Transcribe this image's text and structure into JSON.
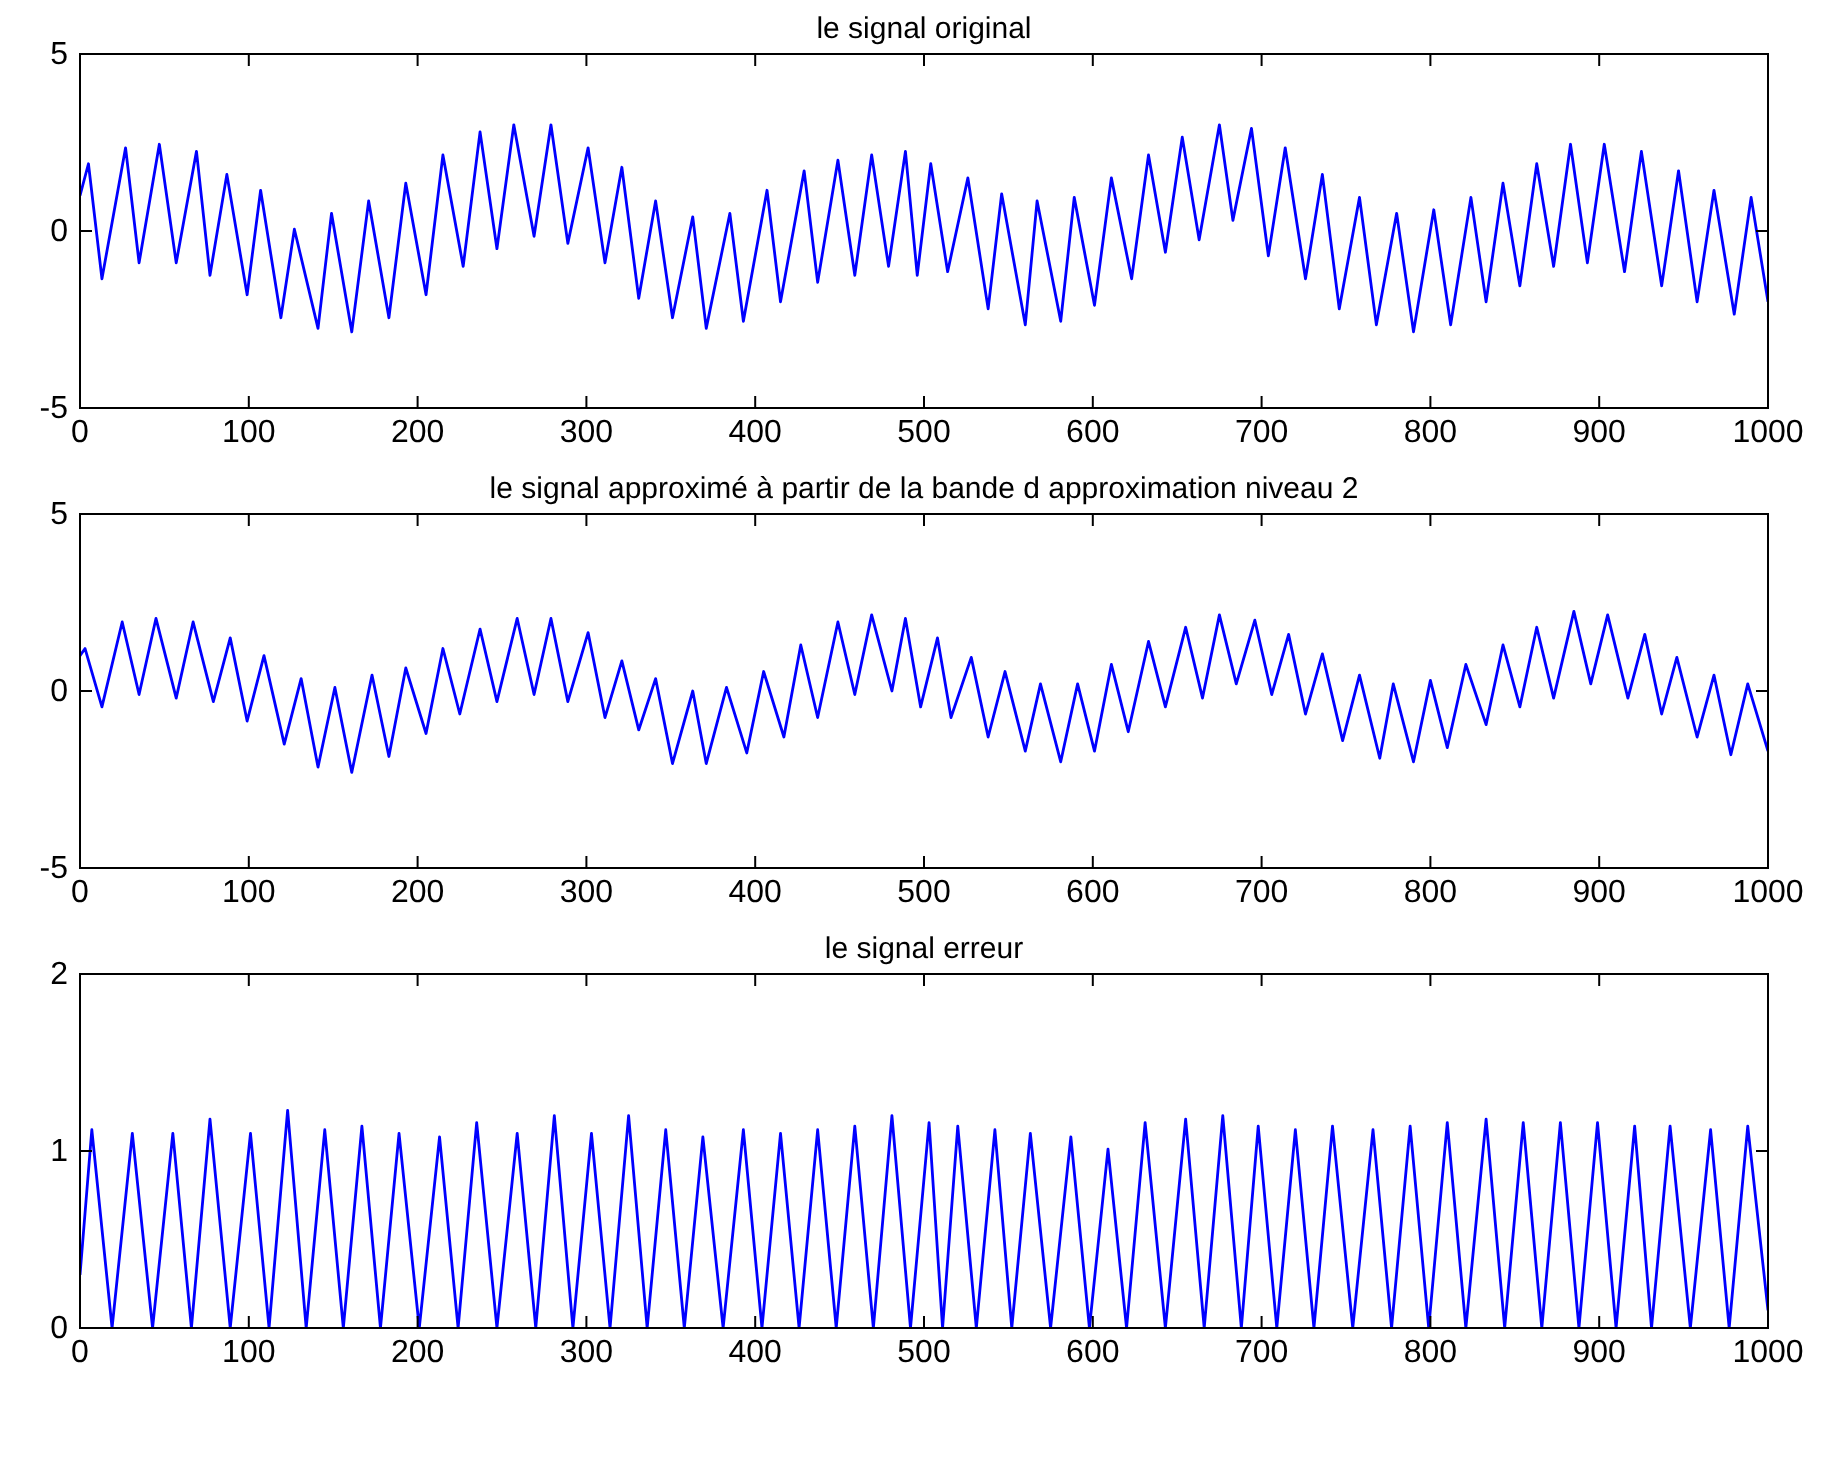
{
  "chart_data": [
    {
      "type": "line",
      "title": "le signal original",
      "color": "#0000ff",
      "xlim": [
        0,
        1000
      ],
      "ylim": [
        -5,
        5
      ],
      "xticks": [
        0,
        100,
        200,
        300,
        400,
        500,
        600,
        700,
        800,
        900,
        1000
      ],
      "yticks": [
        -5,
        0,
        5
      ],
      "x": [
        0,
        5,
        13,
        27,
        35,
        47,
        57,
        69,
        77,
        87,
        99,
        107,
        119,
        127,
        141,
        149,
        161,
        171,
        183,
        193,
        205,
        215,
        227,
        237,
        247,
        257,
        269,
        279,
        289,
        301,
        311,
        321,
        331,
        341,
        351,
        363,
        371,
        385,
        393,
        407,
        415,
        429,
        437,
        449,
        459,
        469,
        479,
        489,
        496,
        504,
        514,
        526,
        538,
        546,
        560,
        567,
        581,
        589,
        601,
        611,
        623,
        633,
        643,
        653,
        663,
        675,
        683,
        694,
        704,
        714,
        726,
        736,
        746,
        758,
        768,
        780,
        790,
        802,
        812,
        824,
        833,
        843,
        853,
        863,
        873,
        883,
        893,
        903,
        915,
        925,
        937,
        947,
        958,
        968,
        980,
        990,
        1000
      ],
      "values": [
        1.0,
        1.9,
        -1.35,
        2.35,
        -0.9,
        2.45,
        -0.9,
        2.25,
        -1.25,
        1.6,
        -1.8,
        1.15,
        -2.45,
        0.05,
        -2.75,
        0.5,
        -2.85,
        0.85,
        -2.45,
        1.35,
        -1.8,
        2.15,
        -1.0,
        2.8,
        -0.5,
        3.0,
        -0.15,
        3.0,
        -0.35,
        2.35,
        -0.9,
        1.8,
        -1.9,
        0.85,
        -2.45,
        0.4,
        -2.75,
        0.5,
        -2.55,
        1.15,
        -2.0,
        1.7,
        -1.45,
        2.0,
        -1.25,
        2.15,
        -1.0,
        2.25,
        -1.25,
        1.9,
        -1.15,
        1.5,
        -2.2,
        1.05,
        -2.65,
        0.85,
        -2.55,
        0.95,
        -2.1,
        1.5,
        -1.35,
        2.15,
        -0.6,
        2.65,
        -0.25,
        3.0,
        0.3,
        2.9,
        -0.7,
        2.35,
        -1.35,
        1.6,
        -2.2,
        0.95,
        -2.65,
        0.5,
        -2.85,
        0.6,
        -2.65,
        0.95,
        -2.0,
        1.35,
        -1.55,
        1.9,
        -1.0,
        2.45,
        -0.9,
        2.45,
        -1.15,
        2.25,
        -1.55,
        1.7,
        -2.0,
        1.15,
        -2.35,
        0.95,
        -2.0
      ]
    },
    {
      "type": "line",
      "title": "le signal approximé à partir de la bande d approximation niveau 2",
      "color": "#0000ff",
      "xlim": [
        0,
        1000
      ],
      "ylim": [
        -5,
        5
      ],
      "xticks": [
        0,
        100,
        200,
        300,
        400,
        500,
        600,
        700,
        800,
        900,
        1000
      ],
      "yticks": [
        -5,
        0,
        5
      ],
      "x": [
        0,
        3,
        13,
        25,
        35,
        45,
        57,
        67,
        79,
        89,
        99,
        109,
        121,
        131,
        141,
        151,
        161,
        173,
        183,
        193,
        205,
        215,
        225,
        237,
        247,
        259,
        269,
        279,
        289,
        301,
        311,
        321,
        331,
        341,
        351,
        363,
        371,
        383,
        395,
        405,
        417,
        427,
        437,
        449,
        459,
        469,
        481,
        489,
        498,
        508,
        516,
        528,
        538,
        548,
        560,
        569,
        581,
        591,
        601,
        611,
        621,
        633,
        643,
        655,
        665,
        675,
        685,
        696,
        706,
        716,
        726,
        736,
        748,
        758,
        770,
        778,
        790,
        800,
        810,
        821,
        833,
        843,
        853,
        863,
        873,
        885,
        895,
        905,
        917,
        927,
        937,
        946,
        958,
        968,
        978,
        988,
        1000
      ],
      "values": [
        1.0,
        1.2,
        -0.45,
        1.95,
        -0.1,
        2.05,
        -0.2,
        1.95,
        -0.3,
        1.5,
        -0.85,
        1.0,
        -1.5,
        0.35,
        -2.15,
        0.1,
        -2.3,
        0.45,
        -1.85,
        0.65,
        -1.2,
        1.2,
        -0.65,
        1.75,
        -0.3,
        2.05,
        -0.1,
        2.05,
        -0.3,
        1.65,
        -0.75,
        0.85,
        -1.1,
        0.35,
        -2.05,
        0.0,
        -2.05,
        0.1,
        -1.75,
        0.55,
        -1.3,
        1.3,
        -0.75,
        1.95,
        -0.1,
        2.15,
        0.0,
        2.05,
        -0.45,
        1.5,
        -0.75,
        0.95,
        -1.3,
        0.55,
        -1.7,
        0.2,
        -2.0,
        0.2,
        -1.7,
        0.75,
        -1.15,
        1.4,
        -0.45,
        1.8,
        -0.2,
        2.15,
        0.2,
        2.0,
        -0.1,
        1.6,
        -0.65,
        1.05,
        -1.4,
        0.45,
        -1.9,
        0.2,
        -2.0,
        0.3,
        -1.6,
        0.75,
        -0.95,
        1.3,
        -0.45,
        1.8,
        -0.2,
        2.25,
        0.2,
        2.15,
        -0.2,
        1.6,
        -0.65,
        0.95,
        -1.3,
        0.45,
        -1.8,
        0.2,
        -1.7
      ]
    },
    {
      "type": "line",
      "title": "le signal erreur",
      "color": "#0000ff",
      "xlim": [
        0,
        1000
      ],
      "ylim": [
        0,
        2
      ],
      "xticks": [
        0,
        100,
        200,
        300,
        400,
        500,
        600,
        700,
        800,
        900,
        1000
      ],
      "yticks": [
        0,
        1,
        2
      ],
      "x": [
        0,
        7,
        19,
        31,
        43,
        55,
        66,
        77,
        89,
        101,
        112,
        123,
        134,
        145,
        156,
        167,
        178,
        189,
        201,
        213,
        224,
        235,
        247,
        259,
        270,
        281,
        292,
        303,
        314,
        325,
        336,
        347,
        358,
        369,
        381,
        393,
        404,
        415,
        426,
        437,
        448,
        459,
        470,
        481,
        492,
        503,
        511,
        520,
        531,
        542,
        552,
        563,
        575,
        587,
        598,
        609,
        620,
        631,
        643,
        655,
        666,
        677,
        688,
        698,
        709,
        720,
        731,
        742,
        754,
        766,
        777,
        788,
        799,
        810,
        821,
        833,
        844,
        855,
        866,
        877,
        888,
        899,
        910,
        921,
        931,
        942,
        954,
        966,
        977,
        988,
        1000
      ],
      "values": [
        0.3,
        1.12,
        0,
        1.1,
        0,
        1.1,
        0,
        1.18,
        0,
        1.1,
        0,
        1.23,
        0,
        1.12,
        0,
        1.14,
        0,
        1.1,
        0,
        1.08,
        0,
        1.16,
        0,
        1.1,
        0,
        1.2,
        0,
        1.1,
        0,
        1.2,
        0,
        1.12,
        0,
        1.08,
        0,
        1.12,
        0,
        1.1,
        0,
        1.12,
        0,
        1.14,
        0,
        1.2,
        0,
        1.16,
        0,
        1.14,
        0,
        1.12,
        0,
        1.1,
        0,
        1.08,
        0,
        1.01,
        0,
        1.16,
        0,
        1.18,
        0,
        1.2,
        0,
        1.14,
        0,
        1.12,
        0,
        1.14,
        0,
        1.12,
        0,
        1.14,
        0,
        1.16,
        0,
        1.18,
        0,
        1.16,
        0,
        1.16,
        0,
        1.16,
        0,
        1.14,
        0,
        1.14,
        0,
        1.12,
        0,
        1.14,
        0.1
      ]
    }
  ]
}
